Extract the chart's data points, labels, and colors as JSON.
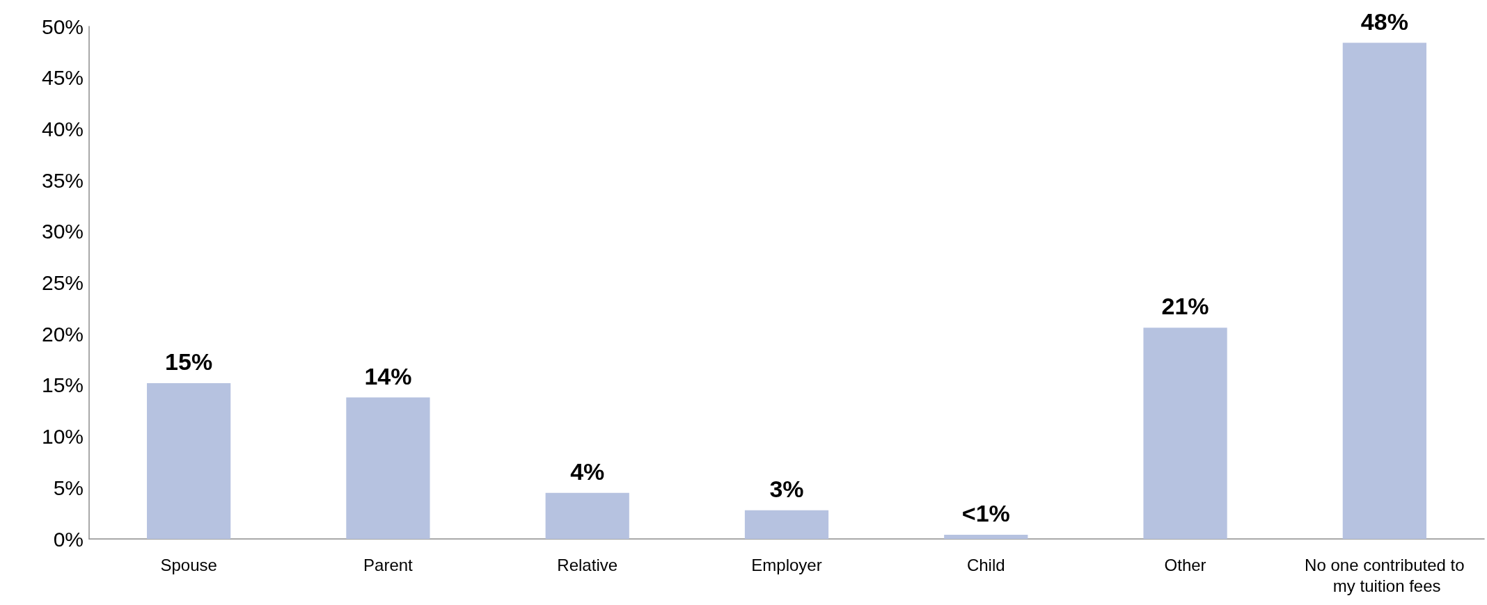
{
  "chart_data": {
    "type": "bar",
    "categories": [
      "Spouse",
      "Parent",
      "Relative",
      "Employer",
      "Child",
      "Other",
      "No one contributed to my tuition fees"
    ],
    "values": [
      15.2,
      13.8,
      4.5,
      2.8,
      0.4,
      20.6,
      48.4
    ],
    "value_labels": [
      "15%",
      "14%",
      "4%",
      "3%",
      "<1%",
      "21%",
      "48%"
    ],
    "color": "#b6c2e0",
    "ylim": [
      0,
      50
    ],
    "yticks": [
      {
        "value": 0,
        "label": "0%"
      },
      {
        "value": 5,
        "label": "5%"
      },
      {
        "value": 10,
        "label": "10%"
      },
      {
        "value": 15,
        "label": "15%"
      },
      {
        "value": 20,
        "label": "20%"
      },
      {
        "value": 25,
        "label": "25%"
      },
      {
        "value": 30,
        "label": "30%"
      },
      {
        "value": 35,
        "label": "35%"
      },
      {
        "value": 40,
        "label": "40%"
      },
      {
        "value": 45,
        "label": "45%"
      },
      {
        "value": 50,
        "label": "50%"
      }
    ],
    "grid": false
  }
}
